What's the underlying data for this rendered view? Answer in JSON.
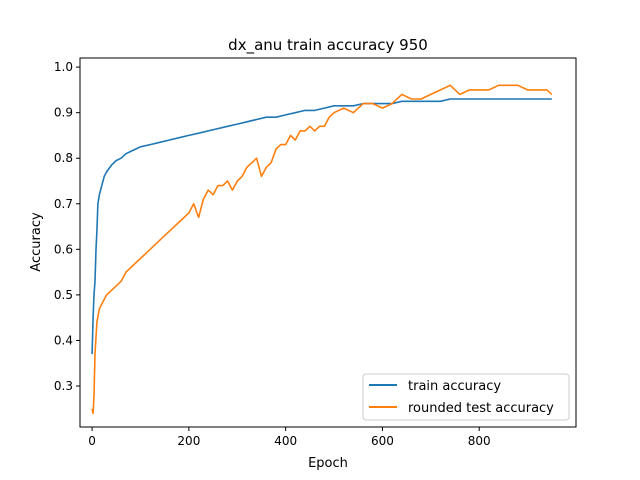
{
  "chart_data": {
    "type": "line",
    "title": "dx_anu train accuracy 950",
    "xlabel": "Epoch",
    "ylabel": "Accuracy",
    "xlim": [
      -25,
      1000
    ],
    "ylim": [
      0.21,
      1.02
    ],
    "xticks": [
      0,
      200,
      400,
      600,
      800
    ],
    "yticks": [
      0.3,
      0.4,
      0.5,
      0.6,
      0.7,
      0.8,
      0.9,
      1.0
    ],
    "grid": false,
    "legend_position": "lower-right",
    "series": [
      {
        "name": "train accuracy",
        "color": "#1f77b4",
        "x": [
          0,
          2,
          4,
          6,
          8,
          10,
          12,
          15,
          20,
          25,
          30,
          40,
          50,
          60,
          70,
          80,
          90,
          100,
          120,
          140,
          160,
          180,
          200,
          220,
          240,
          260,
          280,
          300,
          320,
          340,
          360,
          380,
          400,
          420,
          440,
          460,
          480,
          500,
          520,
          540,
          560,
          580,
          600,
          620,
          640,
          660,
          680,
          700,
          720,
          740,
          760,
          780,
          800,
          820,
          840,
          860,
          880,
          900,
          920,
          940,
          950
        ],
        "y": [
          0.37,
          0.45,
          0.5,
          0.53,
          0.6,
          0.64,
          0.7,
          0.72,
          0.74,
          0.76,
          0.77,
          0.785,
          0.795,
          0.8,
          0.81,
          0.815,
          0.82,
          0.825,
          0.83,
          0.835,
          0.84,
          0.845,
          0.85,
          0.855,
          0.86,
          0.865,
          0.87,
          0.875,
          0.88,
          0.885,
          0.89,
          0.89,
          0.895,
          0.9,
          0.905,
          0.905,
          0.91,
          0.915,
          0.915,
          0.915,
          0.92,
          0.92,
          0.92,
          0.92,
          0.925,
          0.925,
          0.925,
          0.925,
          0.925,
          0.93,
          0.93,
          0.93,
          0.93,
          0.93,
          0.93,
          0.93,
          0.93,
          0.93,
          0.93,
          0.93,
          0.93
        ]
      },
      {
        "name": "rounded test accuracy",
        "color": "#ff7f0e",
        "x": [
          0,
          2,
          4,
          6,
          10,
          15,
          20,
          30,
          40,
          50,
          60,
          70,
          80,
          90,
          100,
          110,
          120,
          140,
          160,
          180,
          200,
          210,
          220,
          230,
          240,
          250,
          260,
          270,
          280,
          290,
          300,
          310,
          320,
          330,
          340,
          350,
          360,
          370,
          380,
          390,
          400,
          410,
          420,
          430,
          440,
          450,
          460,
          470,
          480,
          490,
          500,
          520,
          540,
          560,
          580,
          600,
          620,
          640,
          660,
          680,
          700,
          720,
          740,
          760,
          780,
          800,
          820,
          840,
          860,
          880,
          900,
          920,
          940,
          950
        ],
        "y": [
          0.25,
          0.24,
          0.28,
          0.37,
          0.44,
          0.47,
          0.48,
          0.5,
          0.51,
          0.52,
          0.53,
          0.55,
          0.56,
          0.57,
          0.58,
          0.59,
          0.6,
          0.62,
          0.64,
          0.66,
          0.68,
          0.7,
          0.67,
          0.71,
          0.73,
          0.72,
          0.74,
          0.74,
          0.75,
          0.73,
          0.75,
          0.76,
          0.78,
          0.79,
          0.8,
          0.76,
          0.78,
          0.79,
          0.82,
          0.83,
          0.83,
          0.85,
          0.84,
          0.86,
          0.86,
          0.87,
          0.86,
          0.87,
          0.87,
          0.89,
          0.9,
          0.91,
          0.9,
          0.92,
          0.92,
          0.91,
          0.92,
          0.94,
          0.93,
          0.93,
          0.94,
          0.95,
          0.96,
          0.94,
          0.95,
          0.95,
          0.95,
          0.96,
          0.96,
          0.96,
          0.95,
          0.95,
          0.95,
          0.94
        ]
      }
    ]
  }
}
